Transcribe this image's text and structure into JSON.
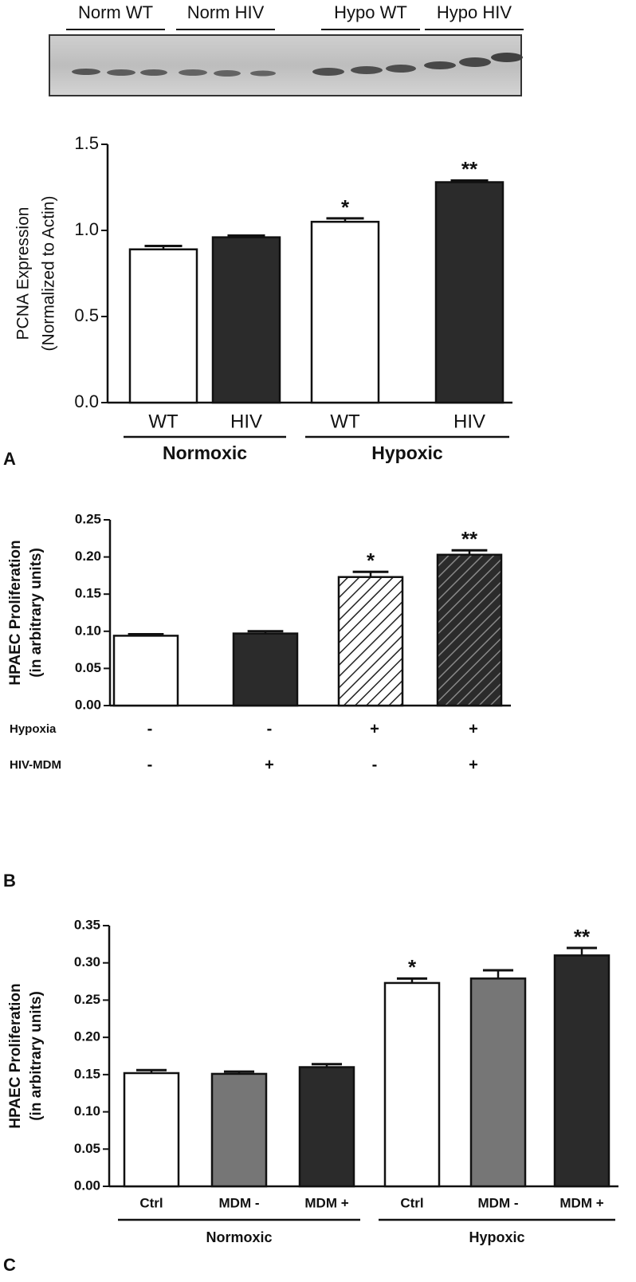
{
  "blot": {
    "labels": [
      "Norm WT",
      "Norm HIV",
      "Hypo WT",
      "Hypo HIV"
    ]
  },
  "chart_data": [
    {
      "type": "bar",
      "panel": "A",
      "ylabel": [
        "PCNA Expression",
        "(Normalized to Actin)"
      ],
      "categories": [
        "WT",
        "HIV",
        "WT",
        "HIV"
      ],
      "values": [
        0.89,
        0.96,
        1.05,
        1.28
      ],
      "errors": [
        0.02,
        0.01,
        0.02,
        0.01
      ],
      "colors": [
        "#ffffff",
        "#2b2b2b",
        "#ffffff",
        "#2b2b2b"
      ],
      "groups": [
        {
          "label": "Normoxic",
          "span": [
            0,
            1
          ]
        },
        {
          "label": "Hypoxic",
          "span": [
            2,
            3
          ]
        }
      ],
      "annotations": [
        {
          "index": 2,
          "text": "*"
        },
        {
          "index": 3,
          "text": "**"
        }
      ],
      "ylim": [
        0,
        1.5
      ],
      "yticks": [
        {
          "value": 0,
          "label": "0.0"
        },
        0.5,
        {
          "value": 1,
          "label": "1.0"
        },
        1.5
      ]
    },
    {
      "type": "bar",
      "panel": "B",
      "ylabel": [
        "HPAEC Proliferation",
        "(in arbitrary units)"
      ],
      "values": [
        0.094,
        0.097,
        0.173,
        0.203
      ],
      "errors": [
        0.002,
        0.003,
        0.007,
        0.006
      ],
      "colors": [
        "#ffffff",
        "#2b2b2b",
        "#ffffff",
        "#2b2b2b"
      ],
      "hatched": [
        false,
        false,
        true,
        true
      ],
      "conditions": [
        {
          "name": "Hypoxia",
          "labels": [
            "-",
            "-",
            "+",
            "+"
          ]
        },
        {
          "name": "HIV-MDM",
          "labels": [
            "-",
            "+",
            "-",
            "+"
          ]
        }
      ],
      "annotations": [
        {
          "index": 2,
          "text": "*"
        },
        {
          "index": 3,
          "text": "**"
        }
      ],
      "ylim": [
        0,
        0.25
      ],
      "yticks": [
        {
          "value": 0,
          "label": "0.00"
        },
        0.05,
        {
          "value": 0.1,
          "label": "0.10"
        },
        0.15,
        {
          "value": 0.2,
          "label": "0.20"
        },
        0.25
      ]
    },
    {
      "type": "bar",
      "panel": "C",
      "ylabel": [
        "HPAEC Proliferation",
        "(in arbitrary units)"
      ],
      "categories": [
        "Ctrl",
        "MDM -",
        "MDM +",
        "Ctrl",
        "MDM -",
        "MDM +"
      ],
      "values": [
        0.152,
        0.151,
        0.16,
        0.273,
        0.279,
        0.31
      ],
      "errors": [
        0.004,
        0.003,
        0.004,
        0.006,
        0.011,
        0.01
      ],
      "colors": [
        "#ffffff",
        "#767676",
        "#2b2b2b",
        "#ffffff",
        "#767676",
        "#2b2b2b"
      ],
      "groups": [
        {
          "label": "Normoxic",
          "span": [
            0,
            2
          ]
        },
        {
          "label": "Hypoxic",
          "span": [
            3,
            5
          ]
        }
      ],
      "annotations": [
        {
          "index": 3,
          "text": "*"
        },
        {
          "index": 5,
          "text": "**"
        }
      ],
      "ylim": [
        0,
        0.35
      ],
      "yticks": [
        {
          "value": 0,
          "label": "0.00"
        },
        0.05,
        {
          "value": 0.1,
          "label": "0.10"
        },
        0.15,
        {
          "value": 0.2,
          "label": "0.20"
        },
        0.25,
        {
          "value": 0.3,
          "label": "0.30"
        },
        0.35
      ]
    }
  ]
}
